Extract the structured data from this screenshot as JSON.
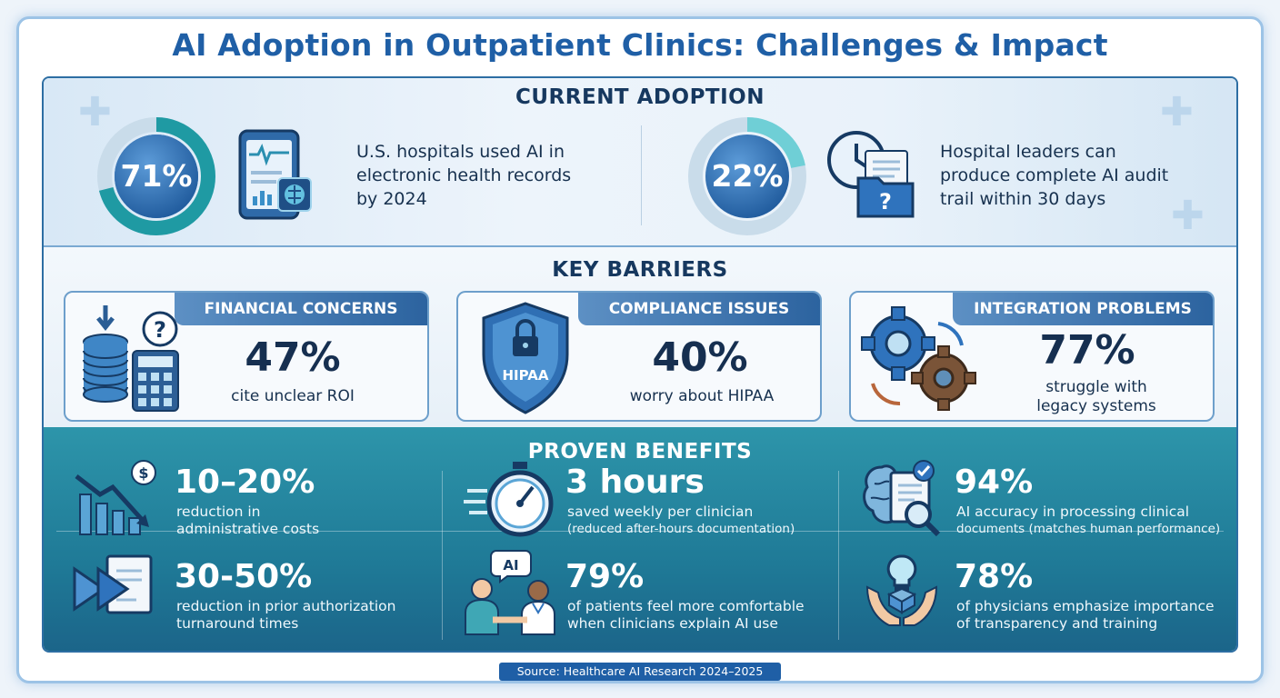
{
  "title": "AI Adoption in Outpatient Clinics: Challenges & Impact",
  "adoption": {
    "heading": "CURRENT ADOPTION",
    "stats": [
      {
        "value": "71%",
        "percent": 71,
        "text": [
          "U.S. hospitals used AI in",
          "electronic health records",
          "by 2024"
        ],
        "icon": "tablet-chip-icon"
      },
      {
        "value": "22%",
        "percent": 22,
        "text": [
          "Hospital leaders can",
          "produce complete AI audit",
          "trail within 30 days"
        ],
        "icon": "clock-folder-icon"
      }
    ]
  },
  "barriers": {
    "heading": "KEY BARRIERS",
    "cards": [
      {
        "title": "FINANCIAL CONCERNS",
        "value": "47%",
        "text": [
          "cite unclear ROI"
        ],
        "icon": "coins-calculator-icon"
      },
      {
        "title": "COMPLIANCE ISSUES",
        "value": "40%",
        "text": [
          "worry about HIPAA"
        ],
        "icon": "hipaa-shield-icon",
        "icon_label": "HIPAA"
      },
      {
        "title": "INTEGRATION PROBLEMS",
        "value": "77%",
        "text": [
          "struggle with",
          "legacy systems"
        ],
        "icon": "gears-icon"
      }
    ]
  },
  "benefits": {
    "heading": "PROVEN BENEFITS",
    "items": [
      {
        "value": "10–20%",
        "text": [
          "reduction in",
          "administrative costs"
        ],
        "icon": "cost-down-chart-icon"
      },
      {
        "value": "3 hours",
        "text": [
          "saved weekly per clinician",
          "(reduced after-hours documentation)"
        ],
        "icon": "stopwatch-icon"
      },
      {
        "value": "94%",
        "text": [
          "AI accuracy in processing clinical",
          "documents (matches human performance)"
        ],
        "icon": "brain-document-icon"
      },
      {
        "value": "30-50%",
        "text": [
          "reduction in prior authorization",
          "turnaround times"
        ],
        "icon": "fast-forward-document-icon"
      },
      {
        "value": "79%",
        "text": [
          "of patients feel more comfortable",
          "when clinicians explain AI use"
        ],
        "icon": "doctor-patient-icon",
        "icon_label": "AI"
      },
      {
        "value": "78%",
        "text": [
          "of physicians emphasize importance",
          "of transparency and training"
        ],
        "icon": "hands-lightbulb-icon"
      }
    ]
  },
  "source": "Source: Healthcare AI Research 2024–2025",
  "colors": {
    "title": "#1f5fa6",
    "navy": "#16385f",
    "teal": "#2d95aa",
    "cardHead": "#2c639f"
  }
}
